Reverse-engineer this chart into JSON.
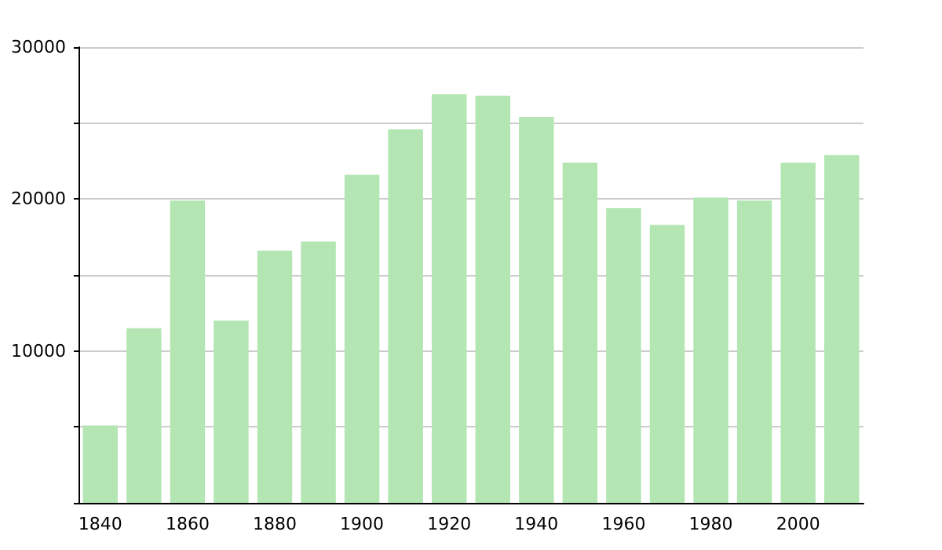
{
  "chart_data": {
    "type": "bar",
    "categories": [
      "1840",
      null,
      "1860",
      null,
      "1880",
      null,
      "1900",
      null,
      "1920",
      null,
      "1940",
      null,
      "1960",
      null,
      "1980",
      null,
      "2000",
      null
    ],
    "values": [
      5100,
      11500,
      19900,
      12000,
      16600,
      17200,
      21600,
      24600,
      26900,
      26800,
      25400,
      22400,
      19400,
      18300,
      20100,
      19900,
      22400,
      22900
    ],
    "color": "#b3e6b3",
    "ylim": [
      0,
      30000
    ],
    "yticks": [
      {
        "value": 0,
        "label": null
      },
      {
        "value": 5000,
        "label": null
      },
      10000,
      {
        "value": 15000,
        "label": null
      },
      20000,
      {
        "value": 25000,
        "label": null
      },
      30000
    ],
    "grid": "y"
  }
}
